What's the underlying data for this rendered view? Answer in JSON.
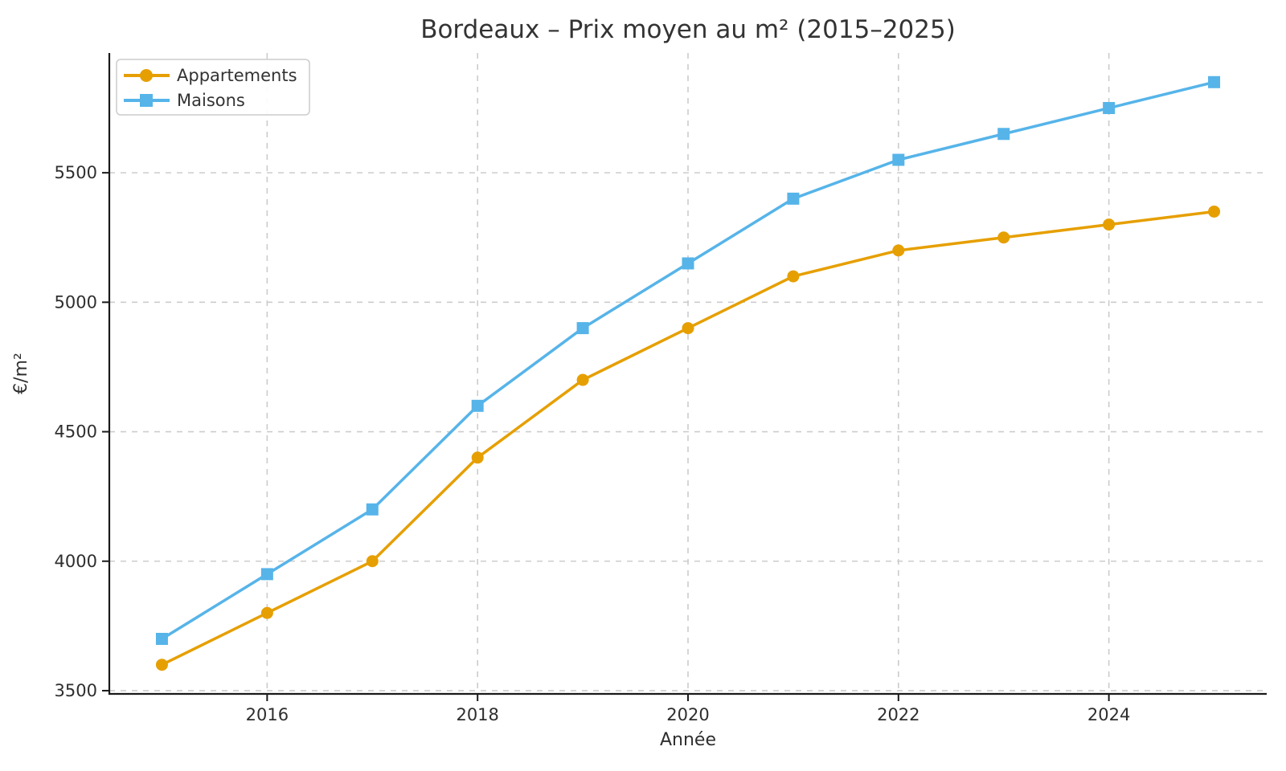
{
  "chart_data": {
    "type": "line",
    "title": "Bordeaux – Prix moyen au m² (2015–2025)",
    "xlabel": "Année",
    "ylabel": "€/m²",
    "x": [
      2015,
      2016,
      2017,
      2018,
      2019,
      2020,
      2021,
      2022,
      2023,
      2024,
      2025
    ],
    "series": [
      {
        "name": "Appartements",
        "marker": "circle",
        "color": "#E69F00",
        "values": [
          3600,
          3800,
          4000,
          4400,
          4700,
          4900,
          5100,
          5200,
          5250,
          5300,
          5350
        ]
      },
      {
        "name": "Maisons",
        "marker": "square",
        "color": "#56B4E9",
        "values": [
          3700,
          3950,
          4200,
          4600,
          4900,
          5150,
          5400,
          5550,
          5650,
          5750,
          5850
        ]
      }
    ],
    "xticks": [
      2016,
      2018,
      2020,
      2022,
      2024
    ],
    "yticks": [
      3500,
      4000,
      4500,
      5000,
      5500
    ],
    "xlim": [
      2014.5,
      2025.5
    ],
    "ylim": [
      3487.5,
      5962.5
    ],
    "grid": {
      "visible": true,
      "style": "dashed",
      "color": "#cccccc"
    },
    "legend": {
      "position": "upper-left",
      "frame": true,
      "entries": [
        "Appartements",
        "Maisons"
      ]
    },
    "colors": {
      "background": "#ffffff",
      "grid": "#cccccc",
      "spine": "#1a1a1a",
      "text": "#2e2e2e"
    }
  }
}
